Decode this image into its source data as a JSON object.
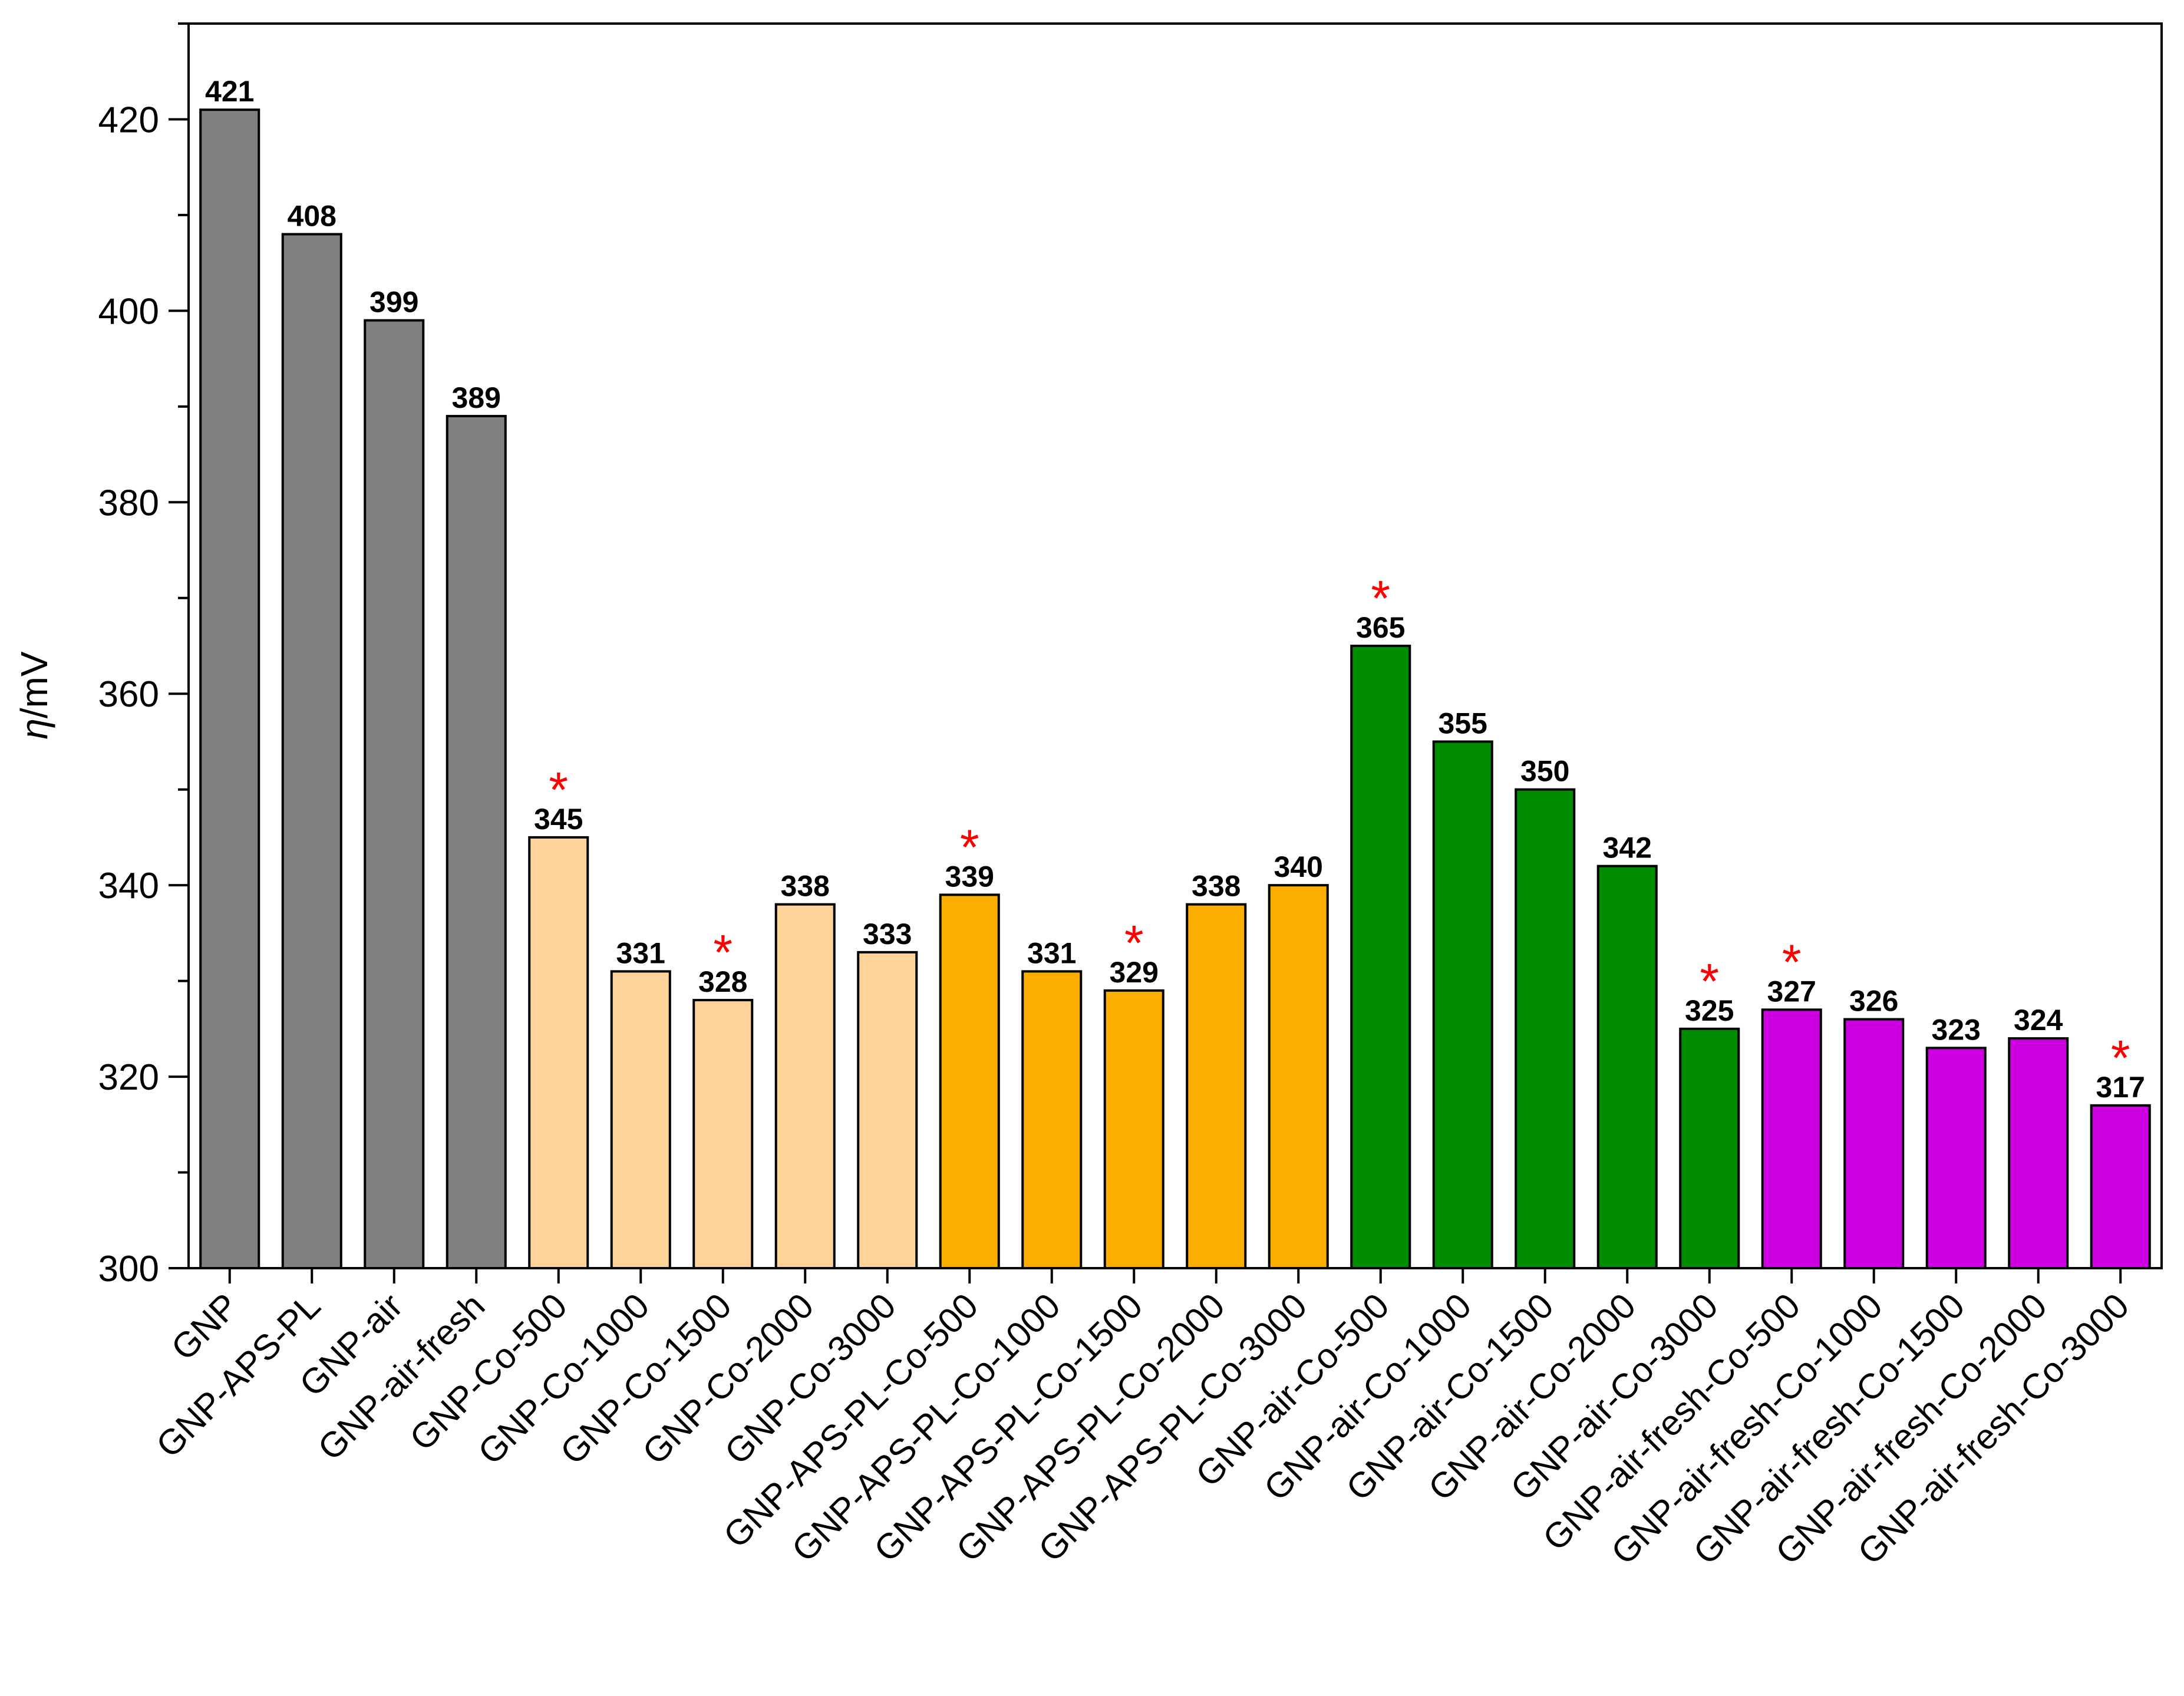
{
  "chart_data": {
    "type": "bar",
    "ylabel_symbol": "η",
    "ylabel_unit": "/mV",
    "xlabel": "",
    "ylim": [
      300,
      430
    ],
    "yticks": [
      300,
      320,
      340,
      360,
      380,
      400,
      420
    ],
    "grid": false,
    "legend": "none",
    "bars": [
      {
        "label": "GNP",
        "value": 421,
        "value_text": "421",
        "color": "#808080",
        "marked": false
      },
      {
        "label": "GNP-APS-PL",
        "value": 408,
        "value_text": "408",
        "color": "#808080",
        "marked": false
      },
      {
        "label": "GNP-air",
        "value": 399,
        "value_text": "399",
        "color": "#808080",
        "marked": false
      },
      {
        "label": "GNP-air-fresh",
        "value": 389,
        "value_text": "389",
        "color": "#808080",
        "marked": false
      },
      {
        "label": "GNP-Co-500",
        "value": 345,
        "value_text": "345",
        "color": "#FDD39A",
        "marked": true
      },
      {
        "label": "GNP-Co-1000",
        "value": 331,
        "value_text": "331",
        "color": "#FDD39A",
        "marked": false
      },
      {
        "label": "GNP-Co-1500",
        "value": 328,
        "value_text": "328",
        "color": "#FDD39A",
        "marked": true
      },
      {
        "label": "GNP-Co-2000",
        "value": 338,
        "value_text": "338",
        "color": "#FDD39A",
        "marked": false
      },
      {
        "label": "GNP-Co-3000",
        "value": 333,
        "value_text": "333",
        "color": "#FDD39A",
        "marked": false
      },
      {
        "label": "GNP-APS-PL-Co-500",
        "value": 339,
        "value_text": "339",
        "color": "#FBAE00",
        "marked": true
      },
      {
        "label": "GNP-APS-PL-Co-1000",
        "value": 331,
        "value_text": "331",
        "color": "#FBAE00",
        "marked": false
      },
      {
        "label": "GNP-APS-PL-Co-1500",
        "value": 329,
        "value_text": "329",
        "color": "#FBAE00",
        "marked": true
      },
      {
        "label": "GNP-APS-PL-Co-2000",
        "value": 338,
        "value_text": "338",
        "color": "#FBAE00",
        "marked": false
      },
      {
        "label": "GNP-APS-PL-Co-3000",
        "value": 340,
        "value_text": "340",
        "color": "#FBAE00",
        "marked": false
      },
      {
        "label": "GNP-air-Co-500",
        "value": 365,
        "value_text": "365",
        "color": "#008C00",
        "marked": true
      },
      {
        "label": "GNP-air-Co-1000",
        "value": 355,
        "value_text": "355",
        "color": "#008C00",
        "marked": false
      },
      {
        "label": "GNP-air-Co-1500",
        "value": 350,
        "value_text": "350",
        "color": "#008C00",
        "marked": false
      },
      {
        "label": "GNP-air-Co-2000",
        "value": 342,
        "value_text": "342",
        "color": "#008C00",
        "marked": false
      },
      {
        "label": "GNP-air-Co-3000",
        "value": 325,
        "value_text": "325",
        "color": "#008C00",
        "marked": true
      },
      {
        "label": "GNP-air-fresh-Co-500",
        "value": 327,
        "value_text": "327",
        "color": "#CC00E0",
        "marked": true
      },
      {
        "label": "GNP-air-fresh-Co-1000",
        "value": 326,
        "value_text": "326",
        "color": "#CC00E0",
        "marked": false
      },
      {
        "label": "GNP-air-fresh-Co-1500",
        "value": 323,
        "value_text": "323",
        "color": "#CC00E0",
        "marked": false
      },
      {
        "label": "GNP-air-fresh-Co-2000",
        "value": 324,
        "value_text": "324",
        "color": "#CC00E0",
        "marked": false
      },
      {
        "label": "GNP-air-fresh-Co-3000",
        "value": 317,
        "value_text": "317",
        "color": "#CC00E0",
        "marked": true
      }
    ],
    "marker_symbol": "*",
    "marker_color": "#FF0000"
  }
}
